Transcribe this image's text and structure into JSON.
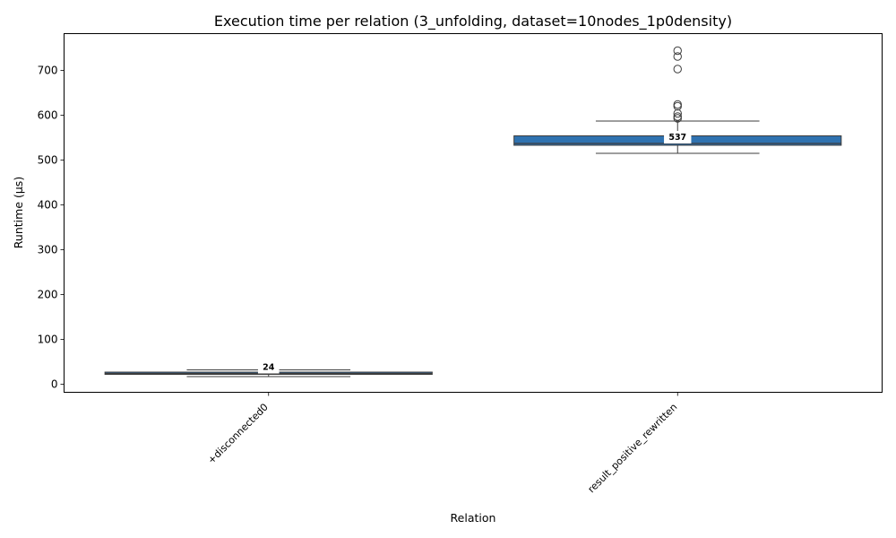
{
  "chart_data": {
    "type": "box",
    "title": "Execution time per relation (3_unfolding, dataset=10nodes_1p0density)",
    "xlabel": "Relation",
    "ylabel": "Runtime (µs)",
    "ylim": [
      -18,
      782
    ],
    "yticks": [
      0,
      100,
      200,
      300,
      400,
      500,
      600,
      700
    ],
    "grid": false,
    "box_color": "#2f72b0",
    "categories": [
      "+disconnected0",
      "result_positive_rewritten"
    ],
    "boxes": [
      {
        "category": "+disconnected0",
        "whisker_low": 17,
        "q1": 22,
        "median": 24,
        "q3": 27,
        "whisker_high": 32,
        "outliers": [],
        "median_label": "24"
      },
      {
        "category": "result_positive_rewritten",
        "whisker_low": 515,
        "q1": 533,
        "median": 537,
        "q3": 554,
        "whisker_high": 587,
        "outliers": [
          593,
          597,
          604,
          620,
          624,
          703,
          731,
          744
        ],
        "median_label": "537"
      }
    ]
  }
}
